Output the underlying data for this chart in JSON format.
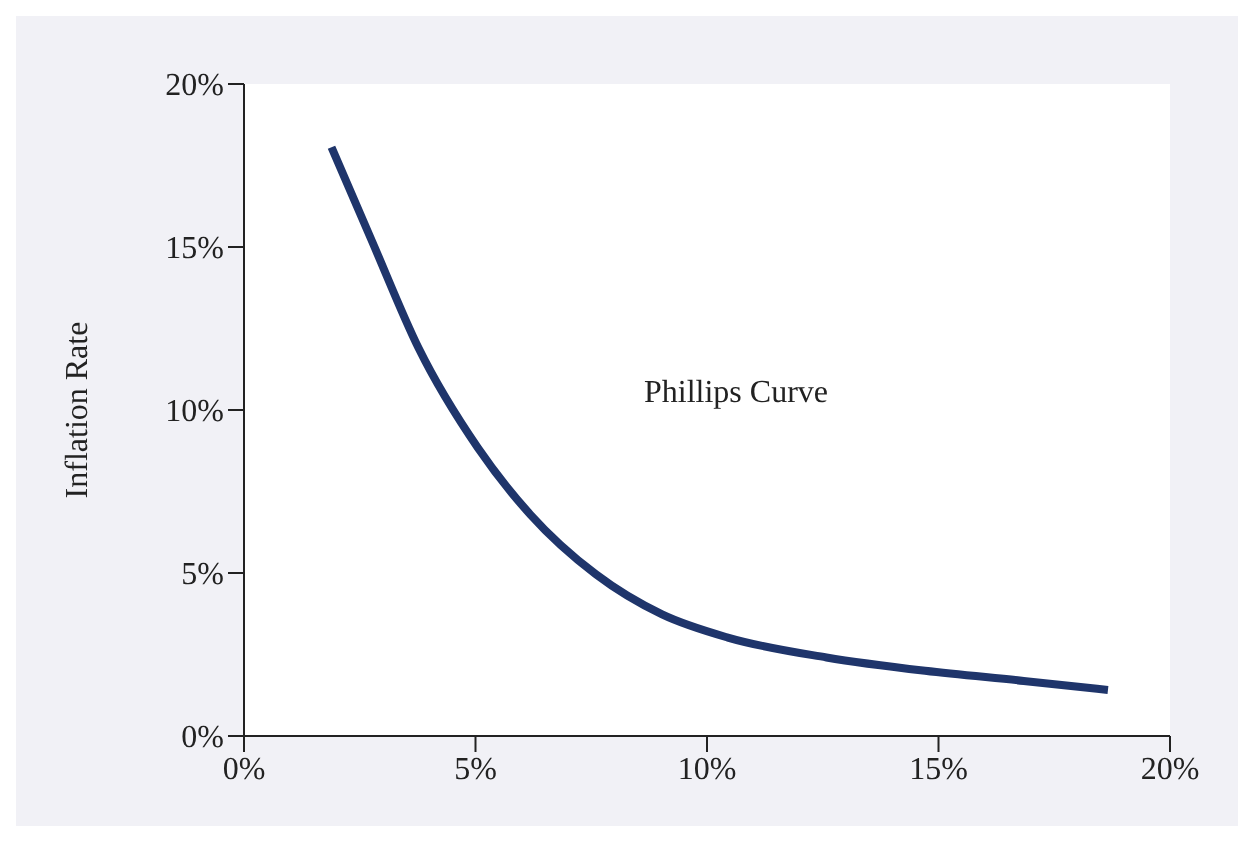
{
  "chart_data": {
    "type": "line",
    "ylabel": "Inflation Rate",
    "annotations": [
      "Phillips Curve"
    ],
    "series": [
      {
        "color": "#1f356b",
        "x": [
          1.89,
          2.77,
          3.77,
          5.05,
          6.18,
          7.6,
          9.03,
          10.45,
          12.58,
          14.71,
          16.84,
          18.66
        ],
        "values": [
          18.06,
          15.16,
          11.9,
          8.84,
          6.8,
          4.96,
          3.73,
          3.02,
          2.41,
          2.0,
          1.69,
          1.41
        ]
      }
    ],
    "xlim": [
      0,
      20
    ],
    "ylim": [
      0,
      20
    ],
    "xticks": [
      {
        "value": 0,
        "label": "0%"
      },
      {
        "value": 5,
        "label": "5%"
      },
      {
        "value": 10,
        "label": "10%"
      },
      {
        "value": 15,
        "label": "15%"
      },
      {
        "value": 20,
        "label": "20%"
      }
    ],
    "yticks": [
      {
        "value": 0,
        "label": "0%"
      },
      {
        "value": 5,
        "label": "5%"
      },
      {
        "value": 10,
        "label": "10%"
      },
      {
        "value": 15,
        "label": "15%"
      },
      {
        "value": 20,
        "label": "20%"
      }
    ],
    "grid": false,
    "legend": false,
    "marker": "none",
    "line_style": "solid"
  }
}
